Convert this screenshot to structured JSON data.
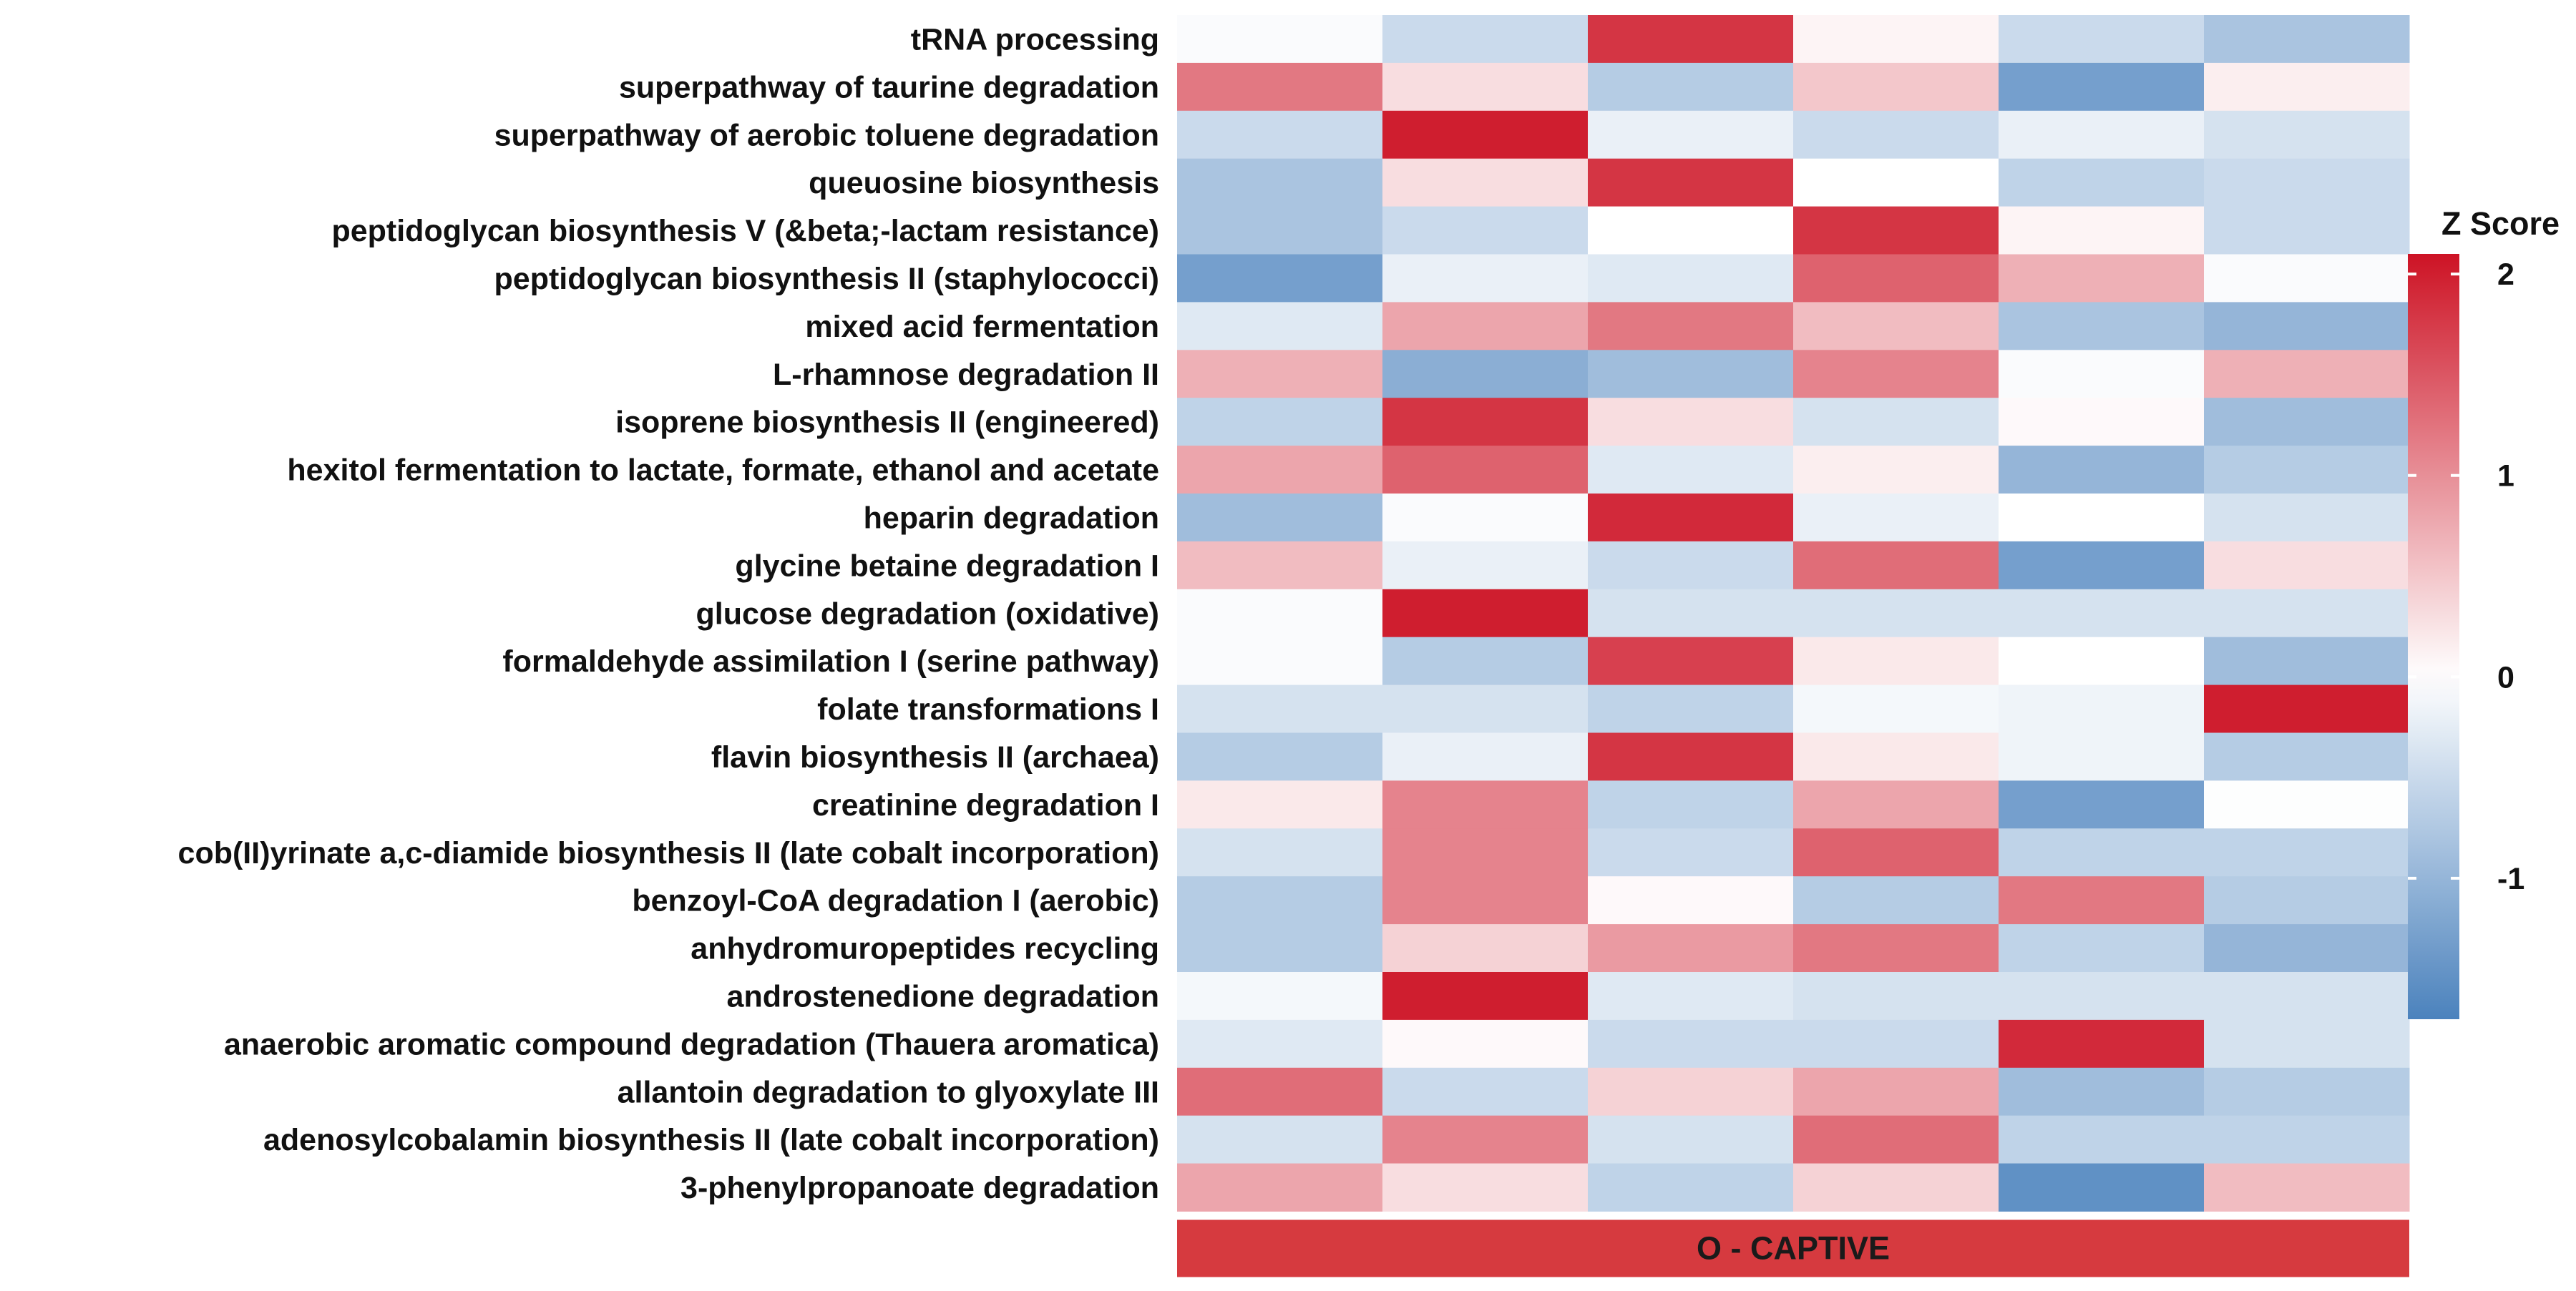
{
  "chart_data": {
    "type": "heatmap",
    "rows": [
      "tRNA processing",
      "superpathway of taurine degradation",
      "superpathway of aerobic toluene degradation",
      "queuosine biosynthesis",
      "peptidoglycan biosynthesis V (&beta;-lactam resistance)",
      "peptidoglycan biosynthesis II (staphylococci)",
      "mixed acid fermentation",
      "L-rhamnose degradation II",
      "isoprene biosynthesis II (engineered)",
      "hexitol fermentation to lactate, formate, ethanol and acetate",
      "heparin degradation",
      "glycine betaine degradation I",
      "glucose degradation (oxidative)",
      "formaldehyde assimilation I (serine pathway)",
      "folate transformations I",
      "flavin biosynthesis II (archaea)",
      "creatinine degradation I",
      "cob(II)yrinate a,c-diamide biosynthesis II (late cobalt incorporation)",
      "benzoyl-CoA degradation I (aerobic)",
      "anhydromuropeptides recycling",
      "androstenedione degradation",
      "anaerobic aromatic compound degradation (Thauera aromatica)",
      "allantoin degradation to glyoxylate III",
      "adenosylcobalamin biosynthesis II (late cobalt incorporation)",
      "3-phenylpropanoate degradation"
    ],
    "values": [
      [
        -0.05,
        -0.5,
        1.8,
        0.1,
        -0.5,
        -0.8
      ],
      [
        1.2,
        0.3,
        -0.7,
        0.5,
        -1.3,
        0.15
      ],
      [
        -0.5,
        2.0,
        -0.2,
        -0.5,
        -0.2,
        -0.4
      ],
      [
        -0.8,
        0.3,
        1.8,
        0.0,
        -0.6,
        -0.5
      ],
      [
        -0.8,
        -0.5,
        0.0,
        1.8,
        0.1,
        -0.5
      ],
      [
        -1.3,
        -0.2,
        -0.3,
        1.4,
        0.7,
        -0.05
      ],
      [
        -0.3,
        0.8,
        1.2,
        0.6,
        -0.8,
        -1.0
      ],
      [
        0.7,
        -1.1,
        -0.9,
        1.1,
        -0.05,
        0.7
      ],
      [
        -0.6,
        1.8,
        0.3,
        -0.4,
        0.05,
        -0.9
      ],
      [
        0.8,
        1.4,
        -0.3,
        0.15,
        -1.0,
        -0.7
      ],
      [
        -0.9,
        -0.05,
        1.9,
        -0.2,
        0.0,
        -0.4
      ],
      [
        0.6,
        -0.2,
        -0.5,
        1.3,
        -1.3,
        0.3
      ],
      [
        -0.05,
        2.0,
        -0.4,
        -0.4,
        -0.4,
        -0.4
      ],
      [
        -0.05,
        -0.7,
        1.7,
        0.2,
        0.0,
        -0.9
      ],
      [
        -0.4,
        -0.4,
        -0.6,
        -0.1,
        -0.15,
        2.0
      ],
      [
        -0.7,
        -0.2,
        1.8,
        0.2,
        -0.15,
        -0.7
      ],
      [
        0.2,
        1.1,
        -0.6,
        0.8,
        -1.3,
        -0.02
      ],
      [
        -0.4,
        1.1,
        -0.5,
        1.4,
        -0.6,
        -0.6
      ],
      [
        -0.7,
        1.1,
        0.05,
        -0.7,
        1.2,
        -0.7
      ],
      [
        -0.7,
        0.4,
        0.9,
        1.2,
        -0.6,
        -1.0
      ],
      [
        -0.1,
        2.0,
        -0.3,
        -0.4,
        -0.4,
        -0.4
      ],
      [
        -0.3,
        0.05,
        -0.5,
        -0.5,
        1.9,
        -0.4
      ],
      [
        1.3,
        -0.5,
        0.4,
        0.8,
        -0.9,
        -0.7
      ],
      [
        -0.4,
        1.1,
        -0.4,
        1.3,
        -0.6,
        -0.6
      ],
      [
        0.8,
        0.3,
        -0.6,
        0.4,
        -1.5,
        0.6
      ]
    ],
    "annotation": {
      "label": "O - CAPTIVE",
      "color": "#d63a3f"
    },
    "colorscale": {
      "title": "Z Score",
      "low_color": "#4b82bd",
      "mid_color": "#ffffff",
      "high_color": "#cd1325",
      "min": -1.7,
      "max": 2.1,
      "ticks": [
        {
          "value": 2,
          "label": "2"
        },
        {
          "value": 1,
          "label": "1"
        },
        {
          "value": 0,
          "label": "0"
        },
        {
          "value": -1,
          "label": "-1"
        }
      ]
    }
  }
}
